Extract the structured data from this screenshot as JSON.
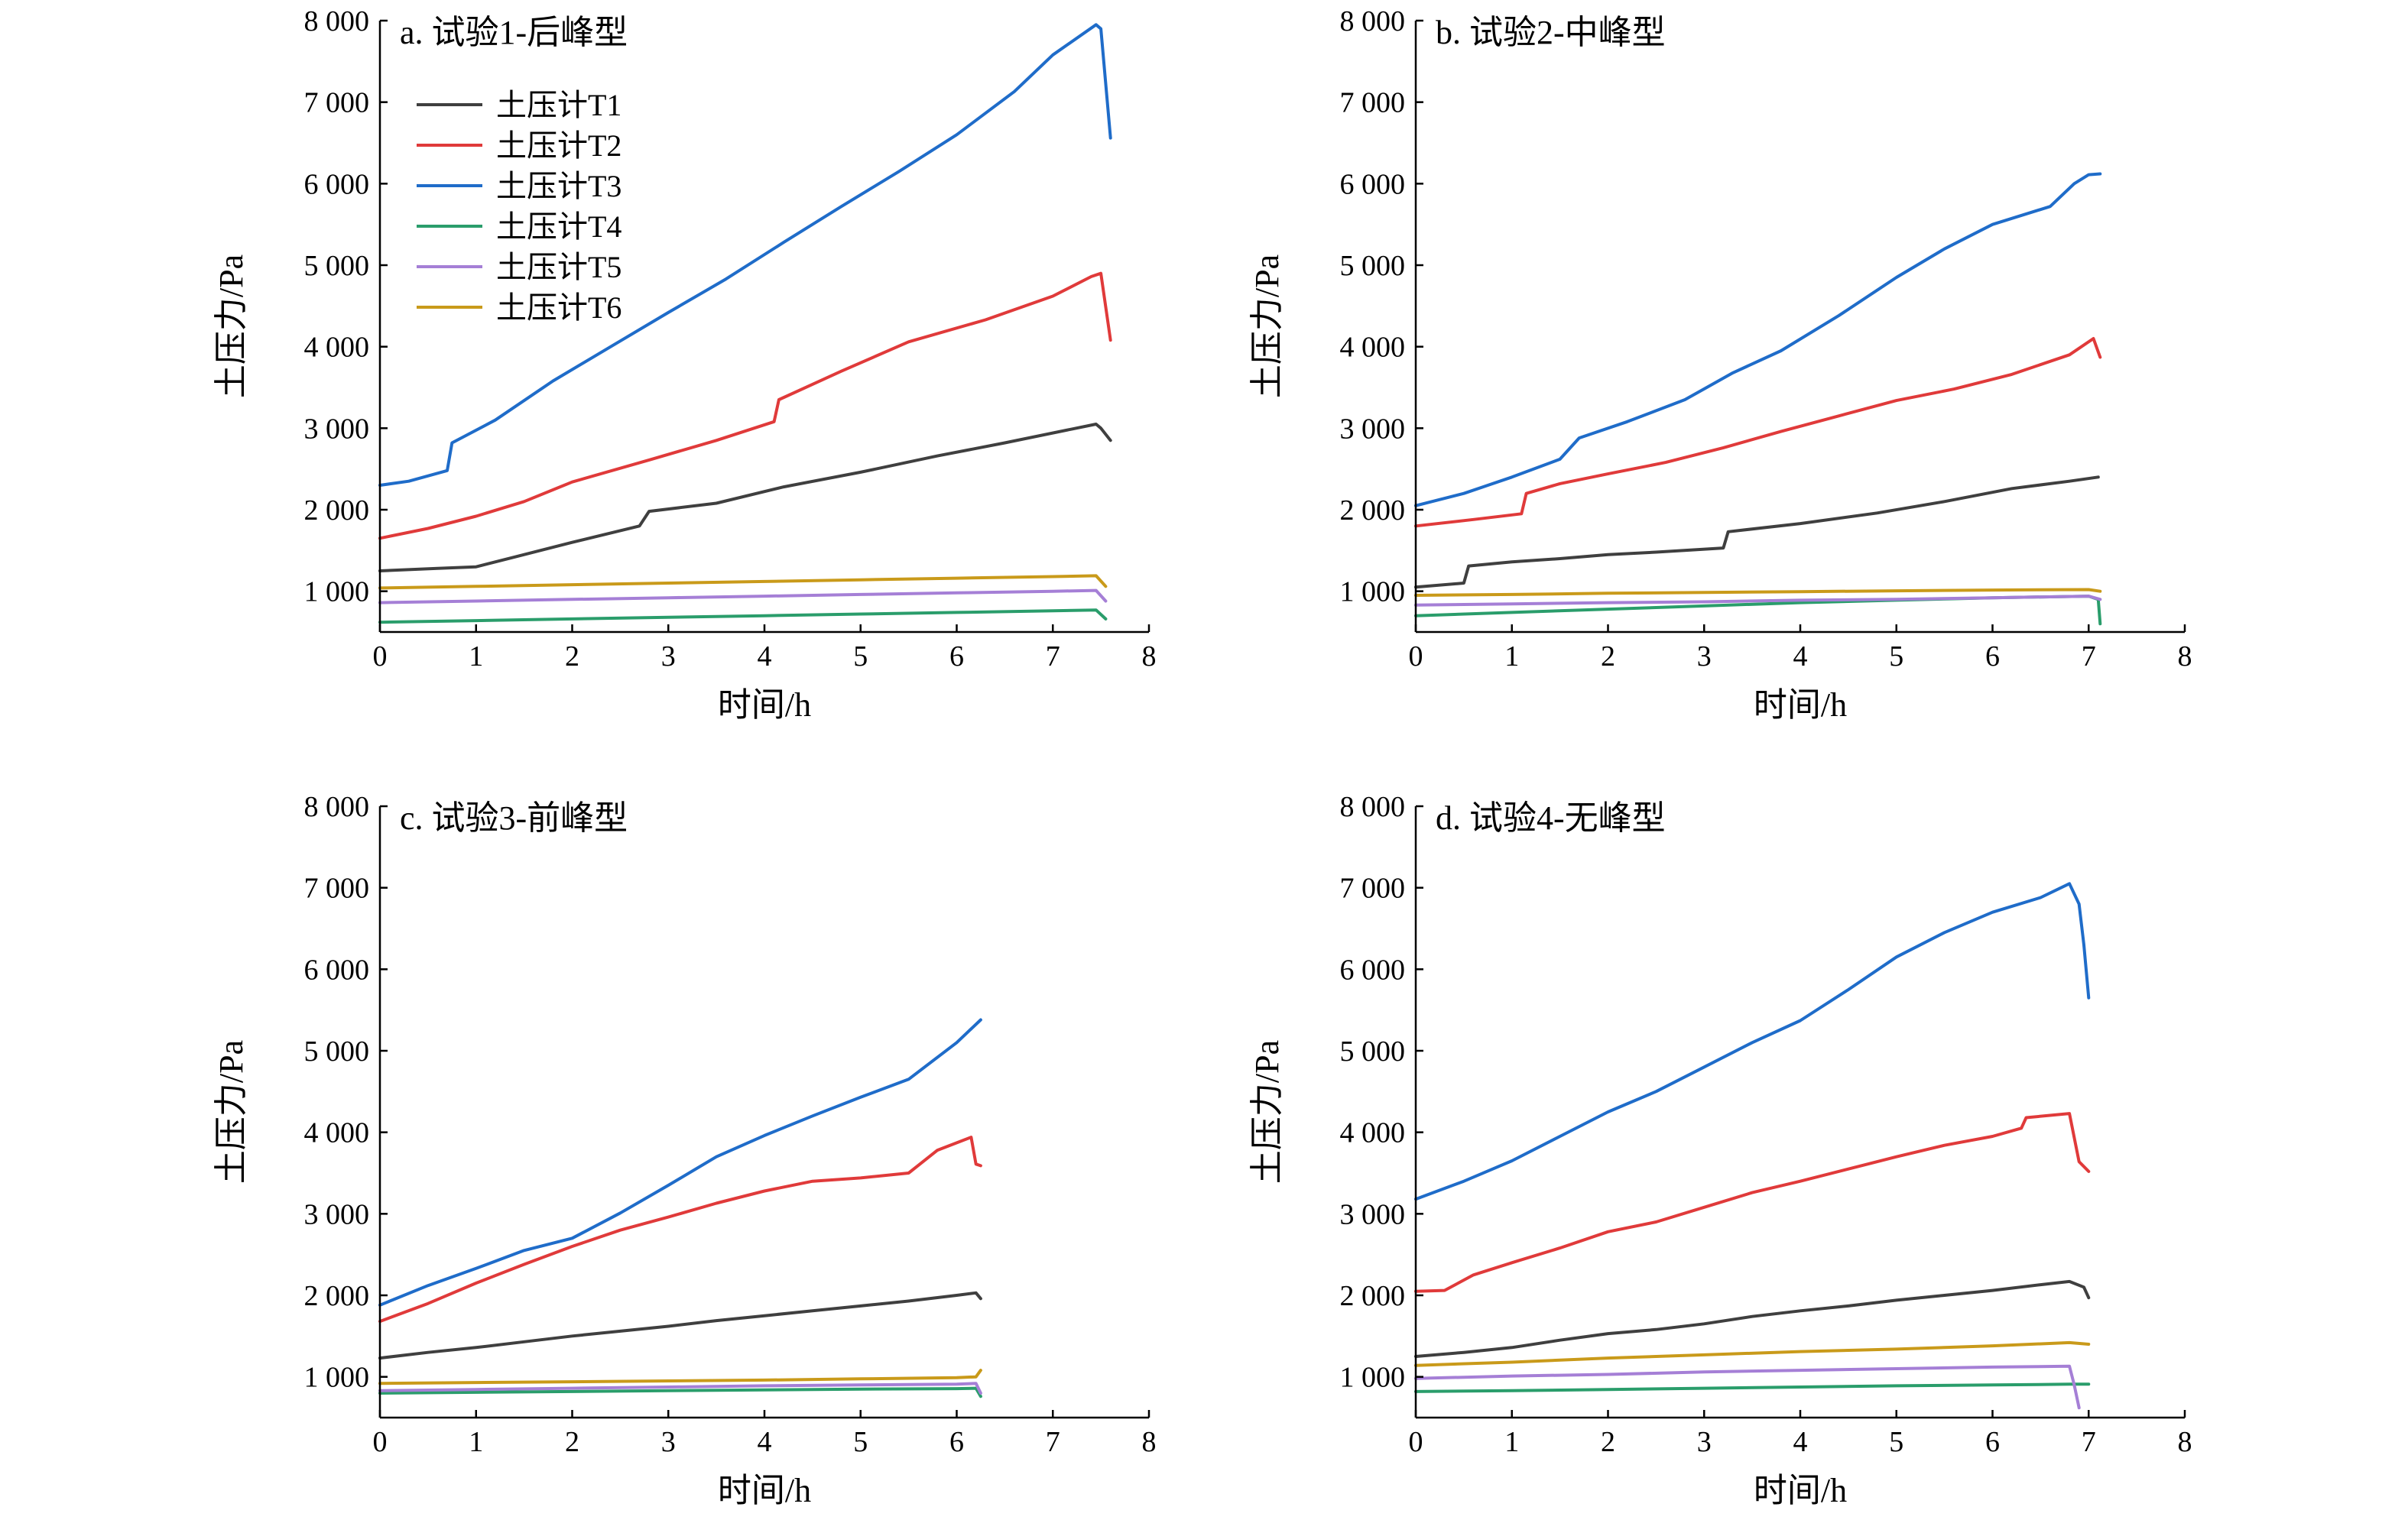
{
  "colors": {
    "土压计T1": "#3f3f3f",
    "土压计T2": "#e03a3a",
    "土压计T3": "#1f6cc9",
    "土压计T4": "#2a9d6b",
    "土压计T5": "#a57fd6",
    "土压计T6": "#c99a1a"
  },
  "legend": {
    "placement": "top-left of panel a",
    "entries": [
      "土压计T1",
      "土压计T2",
      "土压计T3",
      "土压计T4",
      "土压计T5",
      "土压计T6"
    ]
  },
  "chart_data": [
    {
      "type": "line",
      "title": "a. 试验1-后峰型",
      "xlabel": "时间/h",
      "ylabel": "土压力/Pa",
      "xlim": [
        0,
        8
      ],
      "ylim": [
        500,
        8000
      ],
      "xticks": [
        0,
        1,
        2,
        3,
        4,
        5,
        6,
        7,
        8
      ],
      "xtick_labels": [
        "0",
        "1",
        "2",
        "3",
        "4",
        "5",
        "6",
        "7",
        "8"
      ],
      "yticks": [
        1000,
        2000,
        3000,
        4000,
        5000,
        6000,
        7000,
        8000
      ],
      "ytick_labels": [
        "1 000",
        "2 000",
        "3 000",
        "4 000",
        "5 000",
        "6 000",
        "7 000",
        "8 000"
      ],
      "grid": false,
      "series": [
        {
          "name": "土压计T1",
          "x": [
            0,
            0.6,
            1.0,
            1.4,
            2.0,
            2.7,
            2.8,
            3.5,
            4.2,
            5.0,
            5.8,
            6.5,
            7.2,
            7.45,
            7.5,
            7.6
          ],
          "y": [
            1250,
            1280,
            1300,
            1420,
            1600,
            1800,
            1980,
            2080,
            2280,
            2460,
            2660,
            2820,
            2990,
            3050,
            3000,
            2850
          ]
        },
        {
          "name": "土压计T2",
          "x": [
            0,
            0.5,
            1.0,
            1.5,
            2.0,
            2.8,
            3.5,
            4.1,
            4.15,
            4.8,
            5.5,
            6.3,
            7.0,
            7.4,
            7.5,
            7.6
          ],
          "y": [
            1650,
            1770,
            1920,
            2100,
            2340,
            2610,
            2850,
            3080,
            3350,
            3700,
            4060,
            4330,
            4620,
            4860,
            4900,
            4080
          ]
        },
        {
          "name": "土压计T3",
          "x": [
            0,
            0.3,
            0.7,
            0.75,
            1.2,
            1.8,
            2.4,
            3.0,
            3.6,
            4.2,
            4.8,
            5.4,
            6.0,
            6.6,
            7.0,
            7.45,
            7.5,
            7.6
          ],
          "y": [
            2300,
            2350,
            2480,
            2820,
            3100,
            3580,
            4000,
            4420,
            4830,
            5280,
            5720,
            6150,
            6600,
            7130,
            7580,
            7950,
            7900,
            6560
          ]
        },
        {
          "name": "土压计T4",
          "x": [
            0,
            1,
            2,
            3,
            4,
            5,
            6,
            7,
            7.45,
            7.55
          ],
          "y": [
            620,
            640,
            660,
            680,
            700,
            720,
            740,
            760,
            770,
            660
          ]
        },
        {
          "name": "土压计T5",
          "x": [
            0,
            1,
            2,
            3,
            4,
            5,
            6,
            7,
            7.45,
            7.55
          ],
          "y": [
            860,
            880,
            900,
            920,
            940,
            960,
            980,
            1000,
            1010,
            880
          ]
        },
        {
          "name": "土压计T6",
          "x": [
            0,
            1,
            2,
            3,
            4,
            5,
            6,
            7,
            7.45,
            7.55
          ],
          "y": [
            1040,
            1060,
            1080,
            1100,
            1120,
            1140,
            1160,
            1180,
            1190,
            1060
          ]
        }
      ]
    },
    {
      "type": "line",
      "title": "b. 试验2-中峰型",
      "xlabel": "时间/h",
      "ylabel": "土压力/Pa",
      "xlim": [
        0,
        8
      ],
      "ylim": [
        500,
        8000
      ],
      "xticks": [
        0,
        1,
        2,
        3,
        4,
        5,
        6,
        7,
        8
      ],
      "xtick_labels": [
        "0",
        "1",
        "2",
        "3",
        "4",
        "5",
        "6",
        "7",
        "8"
      ],
      "yticks": [
        1000,
        2000,
        3000,
        4000,
        5000,
        6000,
        7000,
        8000
      ],
      "ytick_labels": [
        "1 000",
        "2 000",
        "3 000",
        "4 000",
        "5 000",
        "6 000",
        "7 000",
        "8 000"
      ],
      "grid": false,
      "series": [
        {
          "name": "土压计T1",
          "x": [
            0,
            0.5,
            0.55,
            1.0,
            1.5,
            2.0,
            2.5,
            3.2,
            3.25,
            4.0,
            4.8,
            5.5,
            6.2,
            6.8,
            7.1
          ],
          "y": [
            1050,
            1100,
            1310,
            1360,
            1400,
            1450,
            1480,
            1530,
            1730,
            1830,
            1960,
            2100,
            2260,
            2350,
            2400
          ]
        },
        {
          "name": "土压计T2",
          "x": [
            0,
            0.6,
            1.1,
            1.15,
            1.5,
            2.0,
            2.6,
            3.2,
            3.8,
            4.4,
            5.0,
            5.6,
            6.2,
            6.8,
            7.05,
            7.12
          ],
          "y": [
            1800,
            1880,
            1950,
            2200,
            2320,
            2440,
            2580,
            2760,
            2960,
            3150,
            3340,
            3480,
            3660,
            3900,
            4100,
            3870
          ]
        },
        {
          "name": "土压计T3",
          "x": [
            0,
            0.5,
            1.0,
            1.5,
            1.7,
            2.2,
            2.8,
            3.3,
            3.8,
            4.4,
            5.0,
            5.5,
            6.0,
            6.6,
            6.85,
            7.0,
            7.12
          ],
          "y": [
            2050,
            2200,
            2400,
            2620,
            2880,
            3080,
            3350,
            3680,
            3950,
            4380,
            4850,
            5200,
            5500,
            5720,
            6000,
            6110,
            6120
          ]
        },
        {
          "name": "土压计T4",
          "x": [
            0,
            1,
            2,
            3,
            4,
            5,
            6,
            7.0,
            7.1,
            7.12
          ],
          "y": [
            700,
            740,
            780,
            820,
            860,
            890,
            920,
            940,
            900,
            600
          ]
        },
        {
          "name": "土压计T5",
          "x": [
            0,
            1,
            2,
            3,
            4,
            5,
            6,
            7.0,
            7.12
          ],
          "y": [
            830,
            845,
            860,
            870,
            890,
            900,
            920,
            940,
            900
          ]
        },
        {
          "name": "土压计T6",
          "x": [
            0,
            1,
            2,
            3,
            4,
            5,
            6,
            7.0,
            7.12
          ],
          "y": [
            950,
            960,
            975,
            985,
            995,
            1005,
            1015,
            1020,
            1000
          ]
        }
      ]
    },
    {
      "type": "line",
      "title": "c. 试验3-前峰型",
      "xlabel": "时间/h",
      "ylabel": "土压力/Pa",
      "xlim": [
        0,
        8
      ],
      "ylim": [
        500,
        8000
      ],
      "xticks": [
        0,
        1,
        2,
        3,
        4,
        5,
        6,
        7,
        8
      ],
      "xtick_labels": [
        "0",
        "1",
        "2",
        "3",
        "4",
        "5",
        "6",
        "7",
        "8"
      ],
      "yticks": [
        1000,
        2000,
        3000,
        4000,
        5000,
        6000,
        7000,
        8000
      ],
      "ytick_labels": [
        "1 000",
        "2 000",
        "3 000",
        "4 000",
        "5 000",
        "6 000",
        "7 000",
        "8 000"
      ],
      "grid": false,
      "series": [
        {
          "name": "土压计T1",
          "x": [
            0,
            0.5,
            1.0,
            1.5,
            2.0,
            2.5,
            3.0,
            3.5,
            4.0,
            4.5,
            5.0,
            5.5,
            6.0,
            6.2,
            6.25
          ],
          "y": [
            1230,
            1300,
            1360,
            1430,
            1500,
            1560,
            1620,
            1690,
            1750,
            1810,
            1870,
            1930,
            2000,
            2030,
            1960
          ]
        },
        {
          "name": "土压计T2",
          "x": [
            0,
            0.5,
            1.0,
            1.5,
            2.0,
            2.5,
            3.0,
            3.5,
            4.0,
            4.5,
            5.0,
            5.5,
            5.8,
            6.15,
            6.2,
            6.25
          ],
          "y": [
            1680,
            1900,
            2150,
            2380,
            2600,
            2800,
            2960,
            3130,
            3280,
            3400,
            3440,
            3500,
            3780,
            3940,
            3610,
            3590
          ]
        },
        {
          "name": "土压计T3",
          "x": [
            0,
            0.5,
            1.0,
            1.5,
            2.0,
            2.5,
            3.0,
            3.5,
            4.0,
            4.5,
            5.0,
            5.5,
            6.0,
            6.25
          ],
          "y": [
            1880,
            2120,
            2330,
            2550,
            2700,
            3010,
            3350,
            3700,
            3960,
            4200,
            4430,
            4650,
            5100,
            5380
          ]
        },
        {
          "name": "土压计T4",
          "x": [
            0,
            1,
            2,
            3,
            4,
            5,
            6,
            6.2,
            6.25
          ],
          "y": [
            800,
            810,
            820,
            830,
            840,
            850,
            855,
            860,
            760
          ]
        },
        {
          "name": "土压计T5",
          "x": [
            0,
            1,
            2,
            3,
            4,
            5,
            6,
            6.2,
            6.25
          ],
          "y": [
            830,
            845,
            860,
            875,
            890,
            900,
            910,
            920,
            800
          ]
        },
        {
          "name": "土压计T6",
          "x": [
            0,
            1,
            2,
            3,
            4,
            5,
            6,
            6.2,
            6.25
          ],
          "y": [
            920,
            930,
            940,
            950,
            960,
            975,
            990,
            1000,
            1080
          ]
        }
      ]
    },
    {
      "type": "line",
      "title": "d. 试验4-无峰型",
      "xlabel": "时间/h",
      "ylabel": "土压力/Pa",
      "xlim": [
        0,
        8
      ],
      "ylim": [
        500,
        8000
      ],
      "xticks": [
        0,
        1,
        2,
        3,
        4,
        5,
        6,
        7,
        8
      ],
      "xtick_labels": [
        "0",
        "1",
        "2",
        "3",
        "4",
        "5",
        "6",
        "7",
        "8"
      ],
      "yticks": [
        1000,
        2000,
        3000,
        4000,
        5000,
        6000,
        7000,
        8000
      ],
      "ytick_labels": [
        "1 000",
        "2 000",
        "3 000",
        "4 000",
        "5 000",
        "6 000",
        "7 000",
        "8 000"
      ],
      "grid": false,
      "series": [
        {
          "name": "土压计T1",
          "x": [
            0,
            0.5,
            1.0,
            1.5,
            2.0,
            2.5,
            3.0,
            3.5,
            4.0,
            4.5,
            5.0,
            5.5,
            6.0,
            6.5,
            6.8,
            6.95,
            7.0
          ],
          "y": [
            1250,
            1300,
            1360,
            1450,
            1530,
            1580,
            1650,
            1740,
            1810,
            1870,
            1940,
            2000,
            2060,
            2130,
            2170,
            2100,
            1970
          ]
        },
        {
          "name": "土压计T2",
          "x": [
            0,
            0.3,
            0.6,
            1.0,
            1.5,
            2.0,
            2.5,
            3.0,
            3.5,
            4.0,
            4.5,
            5.0,
            5.5,
            6.0,
            6.3,
            6.35,
            6.8,
            6.9,
            7.0
          ],
          "y": [
            2050,
            2060,
            2250,
            2400,
            2580,
            2780,
            2900,
            3080,
            3260,
            3400,
            3550,
            3700,
            3840,
            3950,
            4050,
            4180,
            4230,
            3640,
            3520
          ]
        },
        {
          "name": "土压计T3",
          "x": [
            0,
            0.5,
            1.0,
            1.5,
            2.0,
            2.5,
            3.0,
            3.5,
            4.0,
            4.5,
            5.0,
            5.5,
            6.0,
            6.5,
            6.8,
            6.9,
            6.95,
            7.0
          ],
          "y": [
            3180,
            3400,
            3650,
            3950,
            4250,
            4500,
            4800,
            5100,
            5370,
            5750,
            6150,
            6450,
            6700,
            6880,
            7050,
            6800,
            6300,
            5650
          ]
        },
        {
          "name": "土压计T4",
          "x": [
            0,
            1,
            2,
            3,
            4,
            5,
            6,
            6.8,
            7.0
          ],
          "y": [
            820,
            830,
            845,
            860,
            875,
            890,
            900,
            910,
            910
          ]
        },
        {
          "name": "土压计T5",
          "x": [
            0,
            1,
            2,
            3,
            4,
            5,
            6,
            6.8,
            6.85,
            6.9
          ],
          "y": [
            980,
            1010,
            1030,
            1060,
            1080,
            1100,
            1120,
            1130,
            900,
            620
          ]
        },
        {
          "name": "土压计T6",
          "x": [
            0,
            1,
            2,
            3,
            4,
            5,
            6,
            6.8,
            7.0
          ],
          "y": [
            1140,
            1180,
            1230,
            1270,
            1310,
            1340,
            1380,
            1420,
            1400
          ]
        }
      ]
    }
  ]
}
